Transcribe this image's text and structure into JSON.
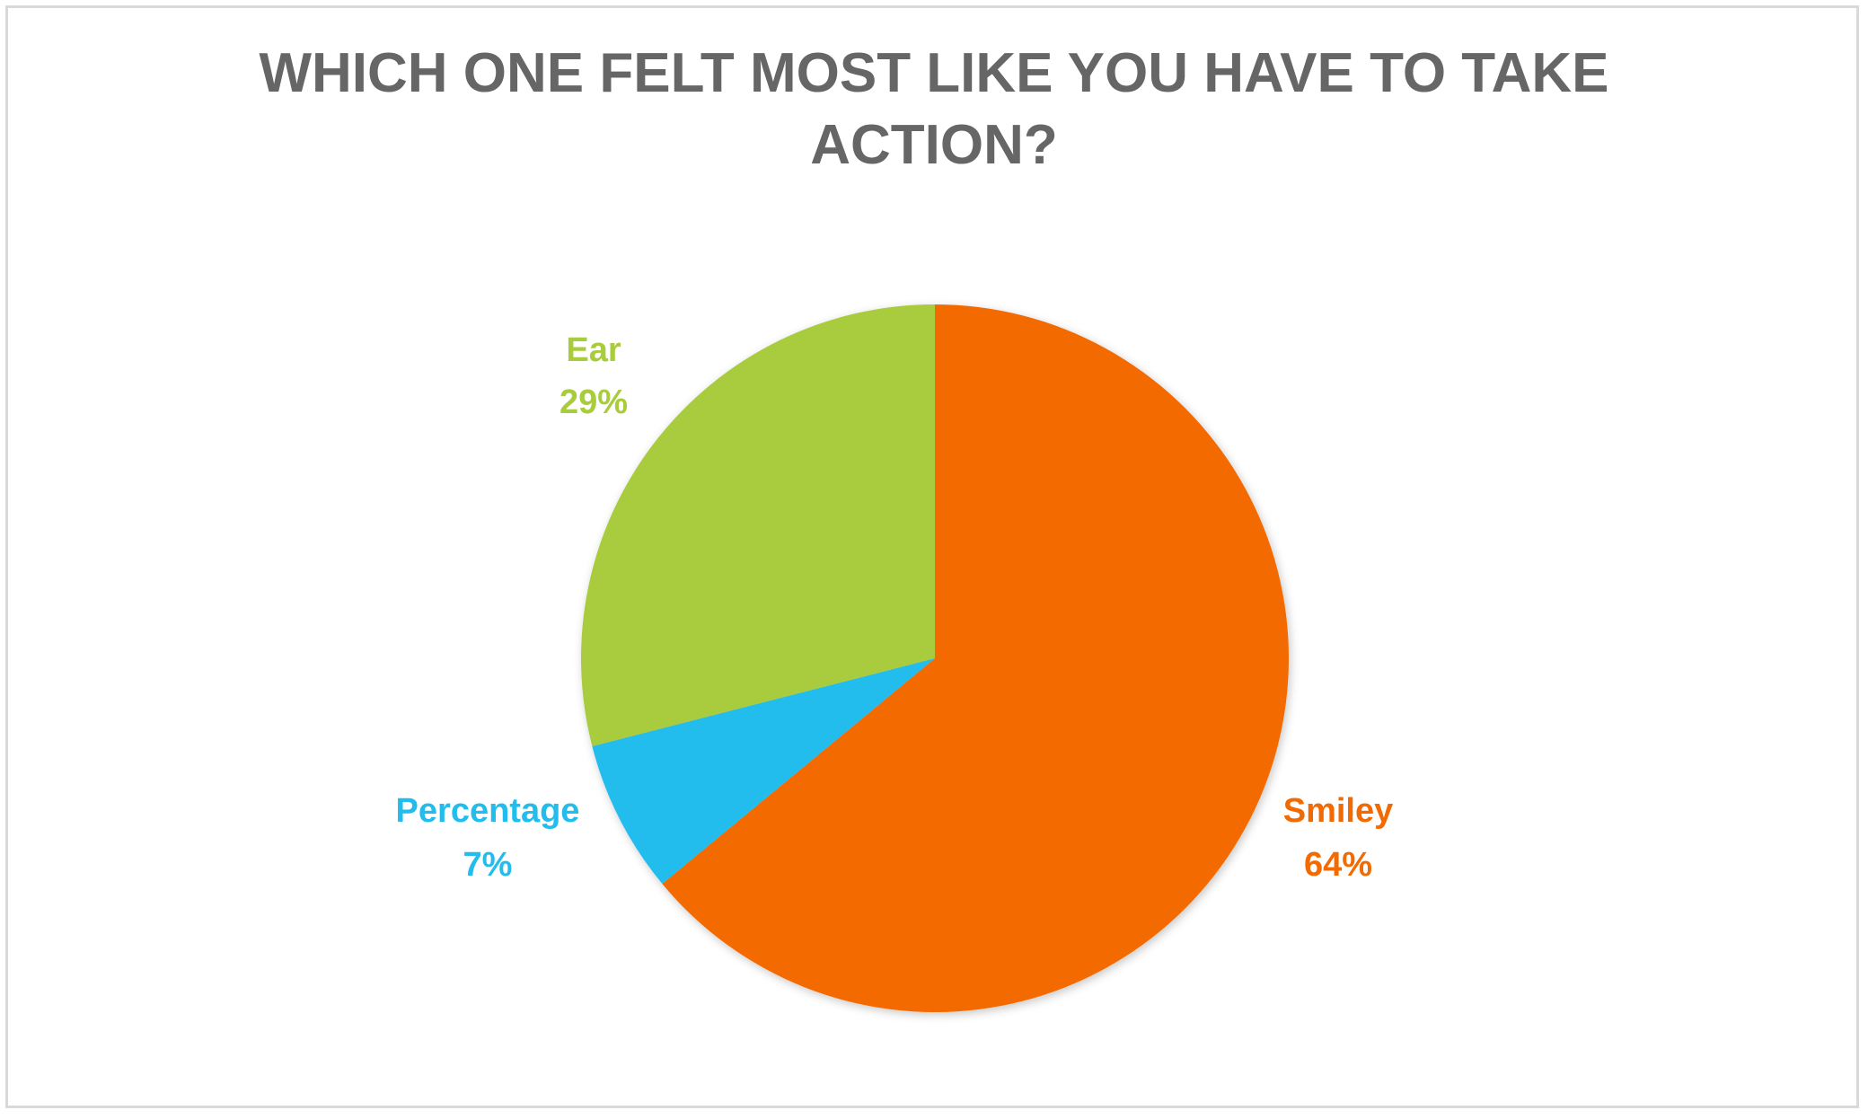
{
  "chart_data": {
    "type": "pie",
    "title": "WHICH ONE FELT MOST LIKE YOU HAVE TO TAKE ACTION?",
    "slices": [
      {
        "label": "Smiley",
        "value": 64,
        "display": "64%",
        "color": "#F26A02"
      },
      {
        "label": "Percentage",
        "value": 7,
        "display": "7%",
        "color": "#22BDED"
      },
      {
        "label": "Ear",
        "value": 29,
        "display": "29%",
        "color": "#A8CC3C"
      }
    ],
    "start_angle": "12 o'clock",
    "direction": "clockwise",
    "legend": "none",
    "data_labels": "outside"
  }
}
